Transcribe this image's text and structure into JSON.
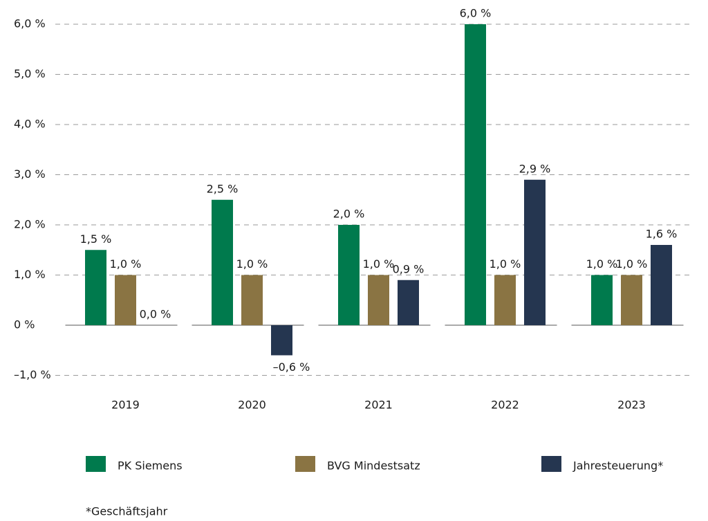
{
  "chart_data": {
    "type": "bar",
    "categories": [
      "2019",
      "2020",
      "2021",
      "2022",
      "2023"
    ],
    "series": [
      {
        "name": "PK Siemens",
        "color": "#007a4d",
        "values": [
          1.5,
          2.5,
          2.0,
          6.0,
          1.0
        ],
        "value_labels": [
          "1,5 %",
          "2,5 %",
          "2,0 %",
          "6,0 %",
          "1,0 %"
        ]
      },
      {
        "name": "BVG Mindestsatz",
        "color": "#8a7443",
        "values": [
          1.0,
          1.0,
          1.0,
          1.0,
          1.0
        ],
        "value_labels": [
          "1,0 %",
          "1,0 %",
          "1,0 %",
          "1,0 %",
          "1,0 %"
        ]
      },
      {
        "name": "Jahresteuerung*",
        "color": "#253650",
        "values": [
          0.0,
          -0.6,
          0.9,
          2.9,
          1.6
        ],
        "value_labels": [
          "0,0 %",
          "–0,6 %",
          "0,9 %",
          "2,9 %",
          "1,6 %"
        ]
      }
    ],
    "ylim": [
      -1,
      6
    ],
    "yticks": [
      {
        "value": -1,
        "label": "–1,0 %"
      },
      {
        "value": 0,
        "label": "0 %"
      },
      {
        "value": 1,
        "label": "1,0 %"
      },
      {
        "value": 2,
        "label": "2,0 %"
      },
      {
        "value": 3,
        "label": "3,0 %"
      },
      {
        "value": 4,
        "label": "4,0 %"
      },
      {
        "value": 5,
        "label": "5,0 %"
      },
      {
        "value": 6,
        "label": "6,0 %"
      }
    ],
    "grid": true,
    "legend": "bottom",
    "footnote": "*Geschäftsjahr"
  }
}
